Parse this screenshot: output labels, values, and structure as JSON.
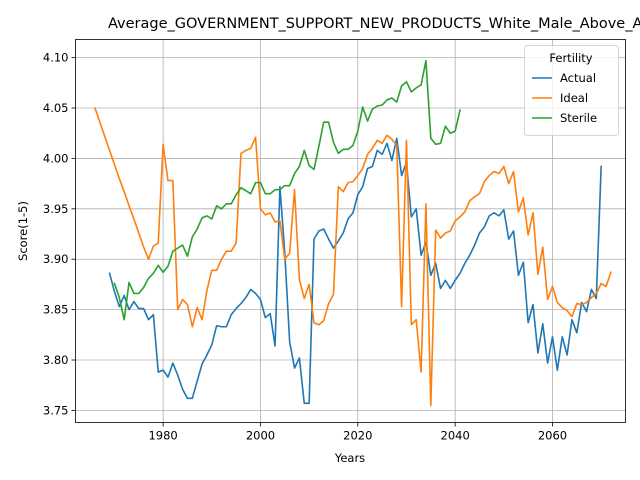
{
  "chart_data": {
    "type": "line",
    "title": "Average_GOVERNMENT_SUPPORT_NEW_PRODUCTS_White_Male_Above_Average",
    "xlabel": "Years",
    "ylabel": "Score(1-5)",
    "xlim": [
      1962,
      2075
    ],
    "ylim": [
      3.738,
      4.118
    ],
    "xticks": [
      1980,
      2000,
      2020,
      2040,
      2060
    ],
    "yticks": [
      3.75,
      3.8,
      3.85,
      3.9,
      3.95,
      4.0,
      4.05,
      4.1
    ],
    "grid": true,
    "legend": {
      "title": "Fertility",
      "position": "top-right"
    },
    "series": [
      {
        "name": "Actual",
        "color": "#1f77b4",
        "points": [
          [
            1969,
            3.886
          ],
          [
            1970,
            3.868
          ],
          [
            1971,
            3.853
          ],
          [
            1972,
            3.864
          ],
          [
            1973,
            3.85
          ],
          [
            1974,
            3.858
          ],
          [
            1975,
            3.851
          ],
          [
            1976,
            3.851
          ],
          [
            1977,
            3.84
          ],
          [
            1978,
            3.845
          ],
          [
            1979,
            3.788
          ],
          [
            1980,
            3.79
          ],
          [
            1981,
            3.783
          ],
          [
            1982,
            3.797
          ],
          [
            1983,
            3.785
          ],
          [
            1984,
            3.771
          ],
          [
            1985,
            3.762
          ],
          [
            1986,
            3.762
          ],
          [
            1987,
            3.779
          ],
          [
            1988,
            3.796
          ],
          [
            1989,
            3.805
          ],
          [
            1990,
            3.815
          ],
          [
            1991,
            3.834
          ],
          [
            1992,
            3.833
          ],
          [
            1993,
            3.833
          ],
          [
            1994,
            3.845
          ],
          [
            1995,
            3.851
          ],
          [
            1996,
            3.856
          ],
          [
            1997,
            3.862
          ],
          [
            1998,
            3.87
          ],
          [
            1999,
            3.866
          ],
          [
            2000,
            3.86
          ],
          [
            2001,
            3.842
          ],
          [
            2002,
            3.846
          ],
          [
            2003,
            3.814
          ],
          [
            2004,
            3.972
          ],
          [
            2005,
            3.906
          ],
          [
            2006,
            3.818
          ],
          [
            2007,
            3.792
          ],
          [
            2008,
            3.802
          ],
          [
            2009,
            3.757
          ],
          [
            2010,
            3.757
          ],
          [
            2011,
            3.92
          ],
          [
            2012,
            3.928
          ],
          [
            2013,
            3.93
          ],
          [
            2014,
            3.92
          ],
          [
            2015,
            3.911
          ],
          [
            2016,
            3.918
          ],
          [
            2017,
            3.926
          ],
          [
            2018,
            3.94
          ],
          [
            2019,
            3.946
          ],
          [
            2020,
            3.964
          ],
          [
            2021,
            3.972
          ],
          [
            2022,
            3.99
          ],
          [
            2023,
            3.992
          ],
          [
            2024,
            4.008
          ],
          [
            2025,
            4.004
          ],
          [
            2026,
            4.015
          ],
          [
            2027,
            3.998
          ],
          [
            2028,
            4.02
          ],
          [
            2029,
            3.983
          ],
          [
            2030,
            3.996
          ],
          [
            2031,
            3.942
          ],
          [
            2032,
            3.95
          ],
          [
            2033,
            3.904
          ],
          [
            2034,
            3.917
          ],
          [
            2035,
            3.884
          ],
          [
            2036,
            3.896
          ],
          [
            2037,
            3.871
          ],
          [
            2038,
            3.879
          ],
          [
            2039,
            3.871
          ],
          [
            2040,
            3.879
          ],
          [
            2041,
            3.886
          ],
          [
            2042,
            3.896
          ],
          [
            2043,
            3.904
          ],
          [
            2044,
            3.914
          ],
          [
            2045,
            3.926
          ],
          [
            2046,
            3.932
          ],
          [
            2047,
            3.943
          ],
          [
            2048,
            3.946
          ],
          [
            2049,
            3.943
          ],
          [
            2050,
            3.949
          ],
          [
            2051,
            3.92
          ],
          [
            2052,
            3.928
          ],
          [
            2053,
            3.884
          ],
          [
            2054,
            3.897
          ],
          [
            2055,
            3.837
          ],
          [
            2056,
            3.855
          ],
          [
            2057,
            3.807
          ],
          [
            2058,
            3.836
          ],
          [
            2059,
            3.797
          ],
          [
            2060,
            3.823
          ],
          [
            2061,
            3.79
          ],
          [
            2062,
            3.823
          ],
          [
            2063,
            3.805
          ],
          [
            2064,
            3.84
          ],
          [
            2065,
            3.827
          ],
          [
            2066,
            3.857
          ],
          [
            2067,
            3.848
          ],
          [
            2068,
            3.87
          ],
          [
            2069,
            3.861
          ],
          [
            2070,
            3.992
          ]
        ]
      },
      {
        "name": "Ideal",
        "color": "#ff7f0e",
        "points": [
          [
            1966,
            4.05
          ],
          [
            1967,
            4.036
          ],
          [
            1968,
            4.022
          ],
          [
            1969,
            4.008
          ],
          [
            1970,
            3.994
          ],
          [
            1971,
            3.98
          ],
          [
            1972,
            3.967
          ],
          [
            1973,
            3.953
          ],
          [
            1974,
            3.94
          ],
          [
            1975,
            3.926
          ],
          [
            1976,
            3.912
          ],
          [
            1977,
            3.9
          ],
          [
            1978,
            3.913
          ],
          [
            1979,
            3.916
          ],
          [
            1980,
            4.014
          ],
          [
            1981,
            3.978
          ],
          [
            1982,
            3.978
          ],
          [
            1983,
            3.85
          ],
          [
            1984,
            3.86
          ],
          [
            1985,
            3.855
          ],
          [
            1986,
            3.833
          ],
          [
            1987,
            3.852
          ],
          [
            1988,
            3.84
          ],
          [
            1989,
            3.869
          ],
          [
            1990,
            3.889
          ],
          [
            1991,
            3.889
          ],
          [
            1992,
            3.9
          ],
          [
            1993,
            3.908
          ],
          [
            1994,
            3.908
          ],
          [
            1995,
            3.916
          ],
          [
            1996,
            4.005
          ],
          [
            1997,
            4.008
          ],
          [
            1998,
            4.01
          ],
          [
            1999,
            4.021
          ],
          [
            2000,
            3.95
          ],
          [
            2001,
            3.944
          ],
          [
            2002,
            3.946
          ],
          [
            2003,
            3.937
          ],
          [
            2004,
            3.938
          ],
          [
            2005,
            3.9
          ],
          [
            2006,
            3.906
          ],
          [
            2007,
            3.969
          ],
          [
            2008,
            3.88
          ],
          [
            2009,
            3.861
          ],
          [
            2010,
            3.875
          ],
          [
            2011,
            3.837
          ],
          [
            2012,
            3.835
          ],
          [
            2013,
            3.839
          ],
          [
            2014,
            3.856
          ],
          [
            2015,
            3.865
          ],
          [
            2016,
            3.972
          ],
          [
            2017,
            3.967
          ],
          [
            2018,
            3.976
          ],
          [
            2019,
            3.977
          ],
          [
            2020,
            3.983
          ],
          [
            2021,
            3.99
          ],
          [
            2022,
            4.004
          ],
          [
            2023,
            4.01
          ],
          [
            2024,
            4.018
          ],
          [
            2025,
            4.015
          ],
          [
            2026,
            4.023
          ],
          [
            2027,
            4.019
          ],
          [
            2028,
            4.013
          ],
          [
            2029,
            3.853
          ],
          [
            2030,
            4.018
          ],
          [
            2031,
            3.835
          ],
          [
            2032,
            3.84
          ],
          [
            2033,
            3.788
          ],
          [
            2034,
            3.955
          ],
          [
            2035,
            3.755
          ],
          [
            2036,
            3.929
          ],
          [
            2037,
            3.921
          ],
          [
            2038,
            3.926
          ],
          [
            2039,
            3.928
          ],
          [
            2040,
            3.938
          ],
          [
            2041,
            3.942
          ],
          [
            2042,
            3.947
          ],
          [
            2043,
            3.958
          ],
          [
            2044,
            3.962
          ],
          [
            2045,
            3.965
          ],
          [
            2046,
            3.977
          ],
          [
            2047,
            3.983
          ],
          [
            2048,
            3.987
          ],
          [
            2049,
            3.985
          ],
          [
            2050,
            3.992
          ],
          [
            2051,
            3.975
          ],
          [
            2052,
            3.987
          ],
          [
            2053,
            3.947
          ],
          [
            2054,
            3.961
          ],
          [
            2055,
            3.924
          ],
          [
            2056,
            3.946
          ],
          [
            2057,
            3.885
          ],
          [
            2058,
            3.912
          ],
          [
            2059,
            3.86
          ],
          [
            2060,
            3.873
          ],
          [
            2061,
            3.857
          ],
          [
            2062,
            3.852
          ],
          [
            2063,
            3.849
          ],
          [
            2064,
            3.843
          ],
          [
            2065,
            3.856
          ],
          [
            2066,
            3.855
          ],
          [
            2067,
            3.857
          ],
          [
            2068,
            3.862
          ],
          [
            2069,
            3.866
          ],
          [
            2070,
            3.876
          ],
          [
            2071,
            3.873
          ],
          [
            2072,
            3.887
          ]
        ]
      },
      {
        "name": "Sterile",
        "color": "#2ca02c",
        "points": [
          [
            1970,
            3.876
          ],
          [
            1971,
            3.862
          ],
          [
            1972,
            3.84
          ],
          [
            1973,
            3.877
          ],
          [
            1974,
            3.866
          ],
          [
            1975,
            3.866
          ],
          [
            1976,
            3.872
          ],
          [
            1977,
            3.881
          ],
          [
            1978,
            3.886
          ],
          [
            1979,
            3.894
          ],
          [
            1980,
            3.887
          ],
          [
            1981,
            3.893
          ],
          [
            1982,
            3.908
          ],
          [
            1983,
            3.911
          ],
          [
            1984,
            3.914
          ],
          [
            1985,
            3.903
          ],
          [
            1986,
            3.922
          ],
          [
            1987,
            3.93
          ],
          [
            1988,
            3.941
          ],
          [
            1989,
            3.943
          ],
          [
            1990,
            3.94
          ],
          [
            1991,
            3.953
          ],
          [
            1992,
            3.95
          ],
          [
            1993,
            3.955
          ],
          [
            1994,
            3.955
          ],
          [
            1995,
            3.964
          ],
          [
            1996,
            3.971
          ],
          [
            1997,
            3.968
          ],
          [
            1998,
            3.965
          ],
          [
            1999,
            3.976
          ],
          [
            2000,
            3.976
          ],
          [
            2001,
            3.965
          ],
          [
            2002,
            3.965
          ],
          [
            2003,
            3.969
          ],
          [
            2004,
            3.969
          ],
          [
            2005,
            3.973
          ],
          [
            2006,
            3.973
          ],
          [
            2007,
            3.985
          ],
          [
            2008,
            3.992
          ],
          [
            2009,
            4.008
          ],
          [
            2010,
            3.993
          ],
          [
            2011,
            3.989
          ],
          [
            2012,
            4.012
          ],
          [
            2013,
            4.036
          ],
          [
            2014,
            4.036
          ],
          [
            2015,
            4.016
          ],
          [
            2016,
            4.005
          ],
          [
            2017,
            4.009
          ],
          [
            2018,
            4.009
          ],
          [
            2019,
            4.013
          ],
          [
            2020,
            4.027
          ],
          [
            2021,
            4.051
          ],
          [
            2022,
            4.037
          ],
          [
            2023,
            4.049
          ],
          [
            2024,
            4.052
          ],
          [
            2025,
            4.053
          ],
          [
            2026,
            4.058
          ],
          [
            2027,
            4.06
          ],
          [
            2028,
            4.056
          ],
          [
            2029,
            4.072
          ],
          [
            2030,
            4.076
          ],
          [
            2031,
            4.066
          ],
          [
            2032,
            4.07
          ],
          [
            2033,
            4.073
          ],
          [
            2034,
            4.097
          ],
          [
            2035,
            4.02
          ],
          [
            2036,
            4.014
          ],
          [
            2037,
            4.015
          ],
          [
            2038,
            4.032
          ],
          [
            2039,
            4.025
          ],
          [
            2040,
            4.027
          ],
          [
            2041,
            4.048
          ]
        ]
      }
    ]
  }
}
